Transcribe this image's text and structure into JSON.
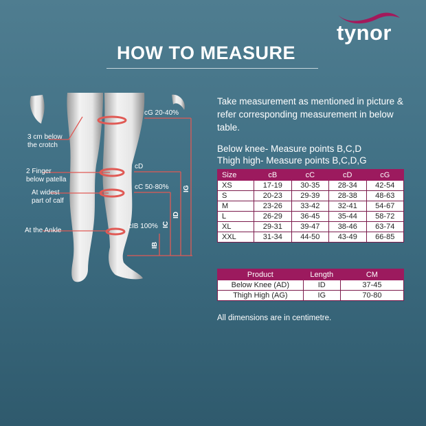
{
  "brand": {
    "logo_text": "tynor",
    "swoosh_color": "#a3195b"
  },
  "title": "HOW TO MEASURE",
  "intro": "Take measurement as mentioned in picture & refer corresponding measurement in below table.",
  "measure_points": [
    "Below knee- Measure points B,C,D",
    "Thigh high- Measure points B,C,D,G"
  ],
  "diagram": {
    "left_labels": [
      "3 cm below",
      "the crotch",
      "2 Finger",
      "below patella",
      "At widest",
      "part of calf",
      "At the Ankle"
    ],
    "right_labels": [
      "cG 20-40%",
      "cD",
      "cC 50-80%",
      "cIB 100%"
    ],
    "length_labels": [
      "IG",
      "ID",
      "IC",
      "IB"
    ],
    "marker_color": "#e05a55"
  },
  "size_table": {
    "headers": [
      "Size",
      "cB",
      "cC",
      "cD",
      "cG"
    ],
    "rows": [
      [
        "XS",
        "17-19",
        "30-35",
        "28-34",
        "42-54"
      ],
      [
        "S",
        "20-23",
        "29-39",
        "28-38",
        "48-63"
      ],
      [
        "M",
        "23-26",
        "33-42",
        "32-41",
        "54-67"
      ],
      [
        "L",
        "26-29",
        "36-45",
        "35-44",
        "58-72"
      ],
      [
        "XL",
        "29-31",
        "39-47",
        "38-46",
        "63-74"
      ],
      [
        "XXL",
        "31-34",
        "44-50",
        "43-49",
        "66-85"
      ]
    ],
    "header_color": "#9c1a5e"
  },
  "length_table": {
    "headers": [
      "Product",
      "Length",
      "CM"
    ],
    "rows": [
      [
        "Below Knee (AD)",
        "ID",
        "37-45"
      ],
      [
        "Thigh High (AG)",
        "IG",
        "70-80"
      ]
    ]
  },
  "note": "All dimensions are in centimetre."
}
